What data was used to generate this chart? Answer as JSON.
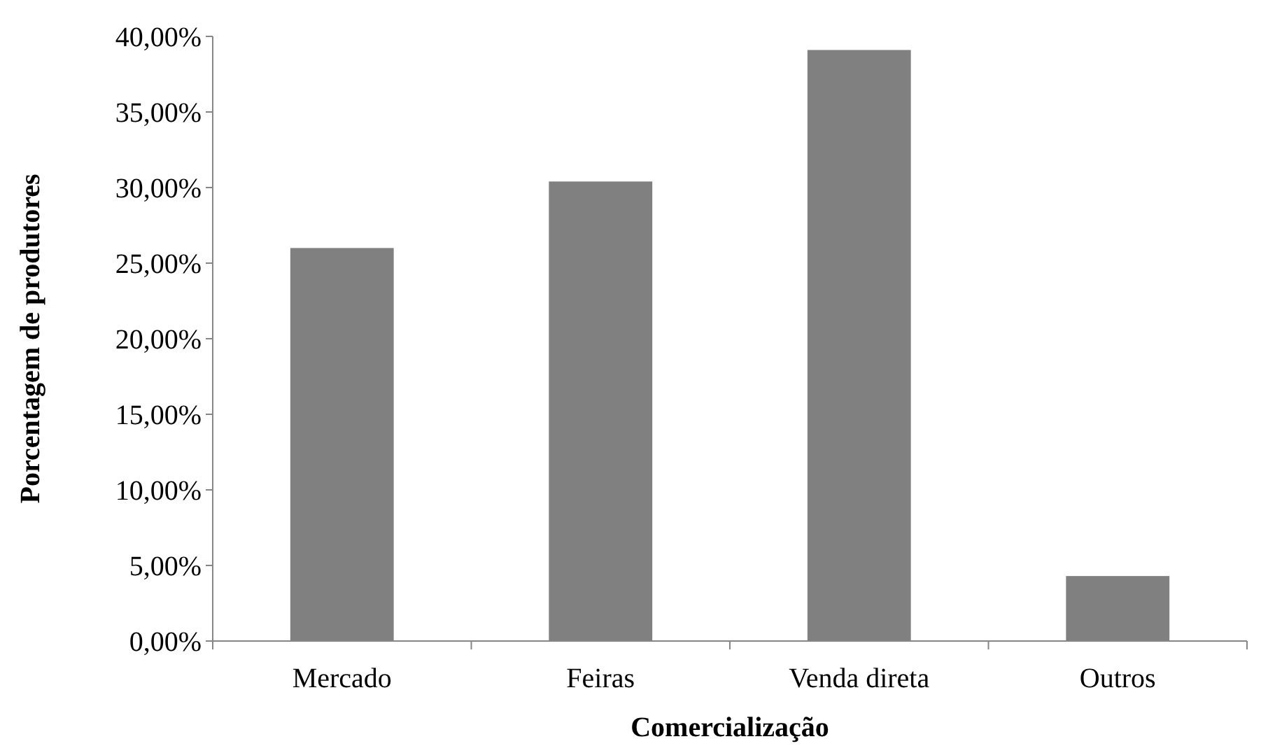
{
  "chart_data": {
    "type": "bar",
    "xlabel": "Comercialização",
    "ylabel": "Porcentagem de produtores",
    "categories": [
      "Mercado",
      "Feiras",
      "Venda direta",
      "Outros"
    ],
    "values": [
      26.0,
      30.4,
      39.1,
      4.3
    ],
    "color": "#808080",
    "ylim": [
      0,
      40
    ],
    "yticks": [
      {
        "value": 0,
        "label": "0,00%"
      },
      {
        "value": 5,
        "label": "5,00%"
      },
      {
        "value": 10,
        "label": "10,00%"
      },
      {
        "value": 15,
        "label": "15,00%"
      },
      {
        "value": 20,
        "label": "20,00%"
      },
      {
        "value": 25,
        "label": "25,00%"
      },
      {
        "value": 30,
        "label": "30,00%"
      },
      {
        "value": 35,
        "label": "35,00%"
      },
      {
        "value": 40,
        "label": "40,00%"
      }
    ],
    "grid": false
  }
}
